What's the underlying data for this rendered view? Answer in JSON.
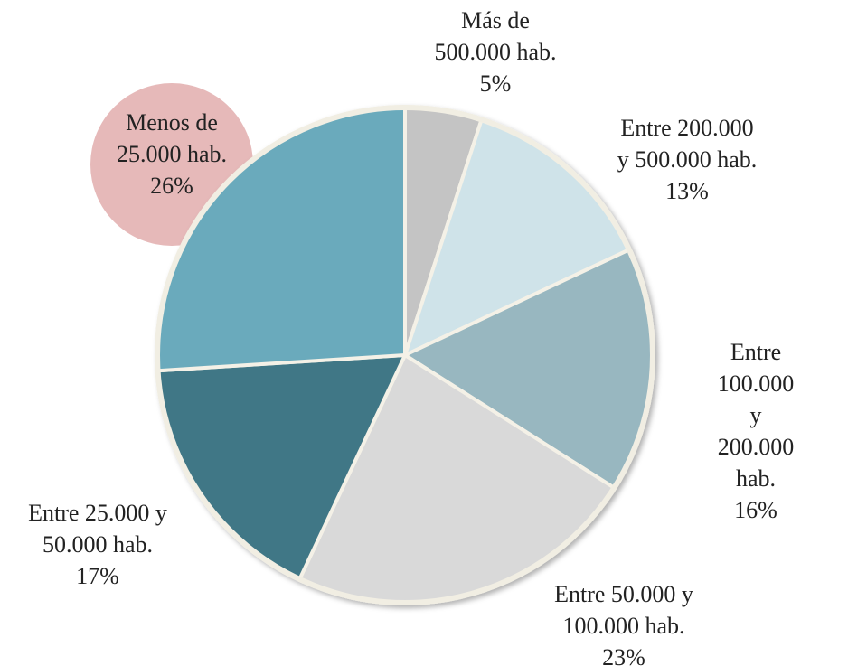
{
  "chart_data": {
    "type": "pie",
    "categories": [
      "Más de\n500.000 hab.",
      "Entre 200.000\ny 500.000 hab.",
      "Entre 100.000\ny 200.000 hab.",
      "Entre 50.000 y\n100.000 hab.",
      "Entre 25.000 y\n50.000 hab.",
      "Menos de\n25.000 hab."
    ],
    "values": [
      5,
      13,
      16,
      23,
      17,
      26
    ],
    "value_labels": [
      "5%",
      "13%",
      "16%",
      "23%",
      "17%",
      "26%"
    ],
    "colors": [
      "#c4c4c4",
      "#cfe3e9",
      "#98b7c0",
      "#d9d9d9",
      "#417786",
      "#6aaabc"
    ]
  }
}
